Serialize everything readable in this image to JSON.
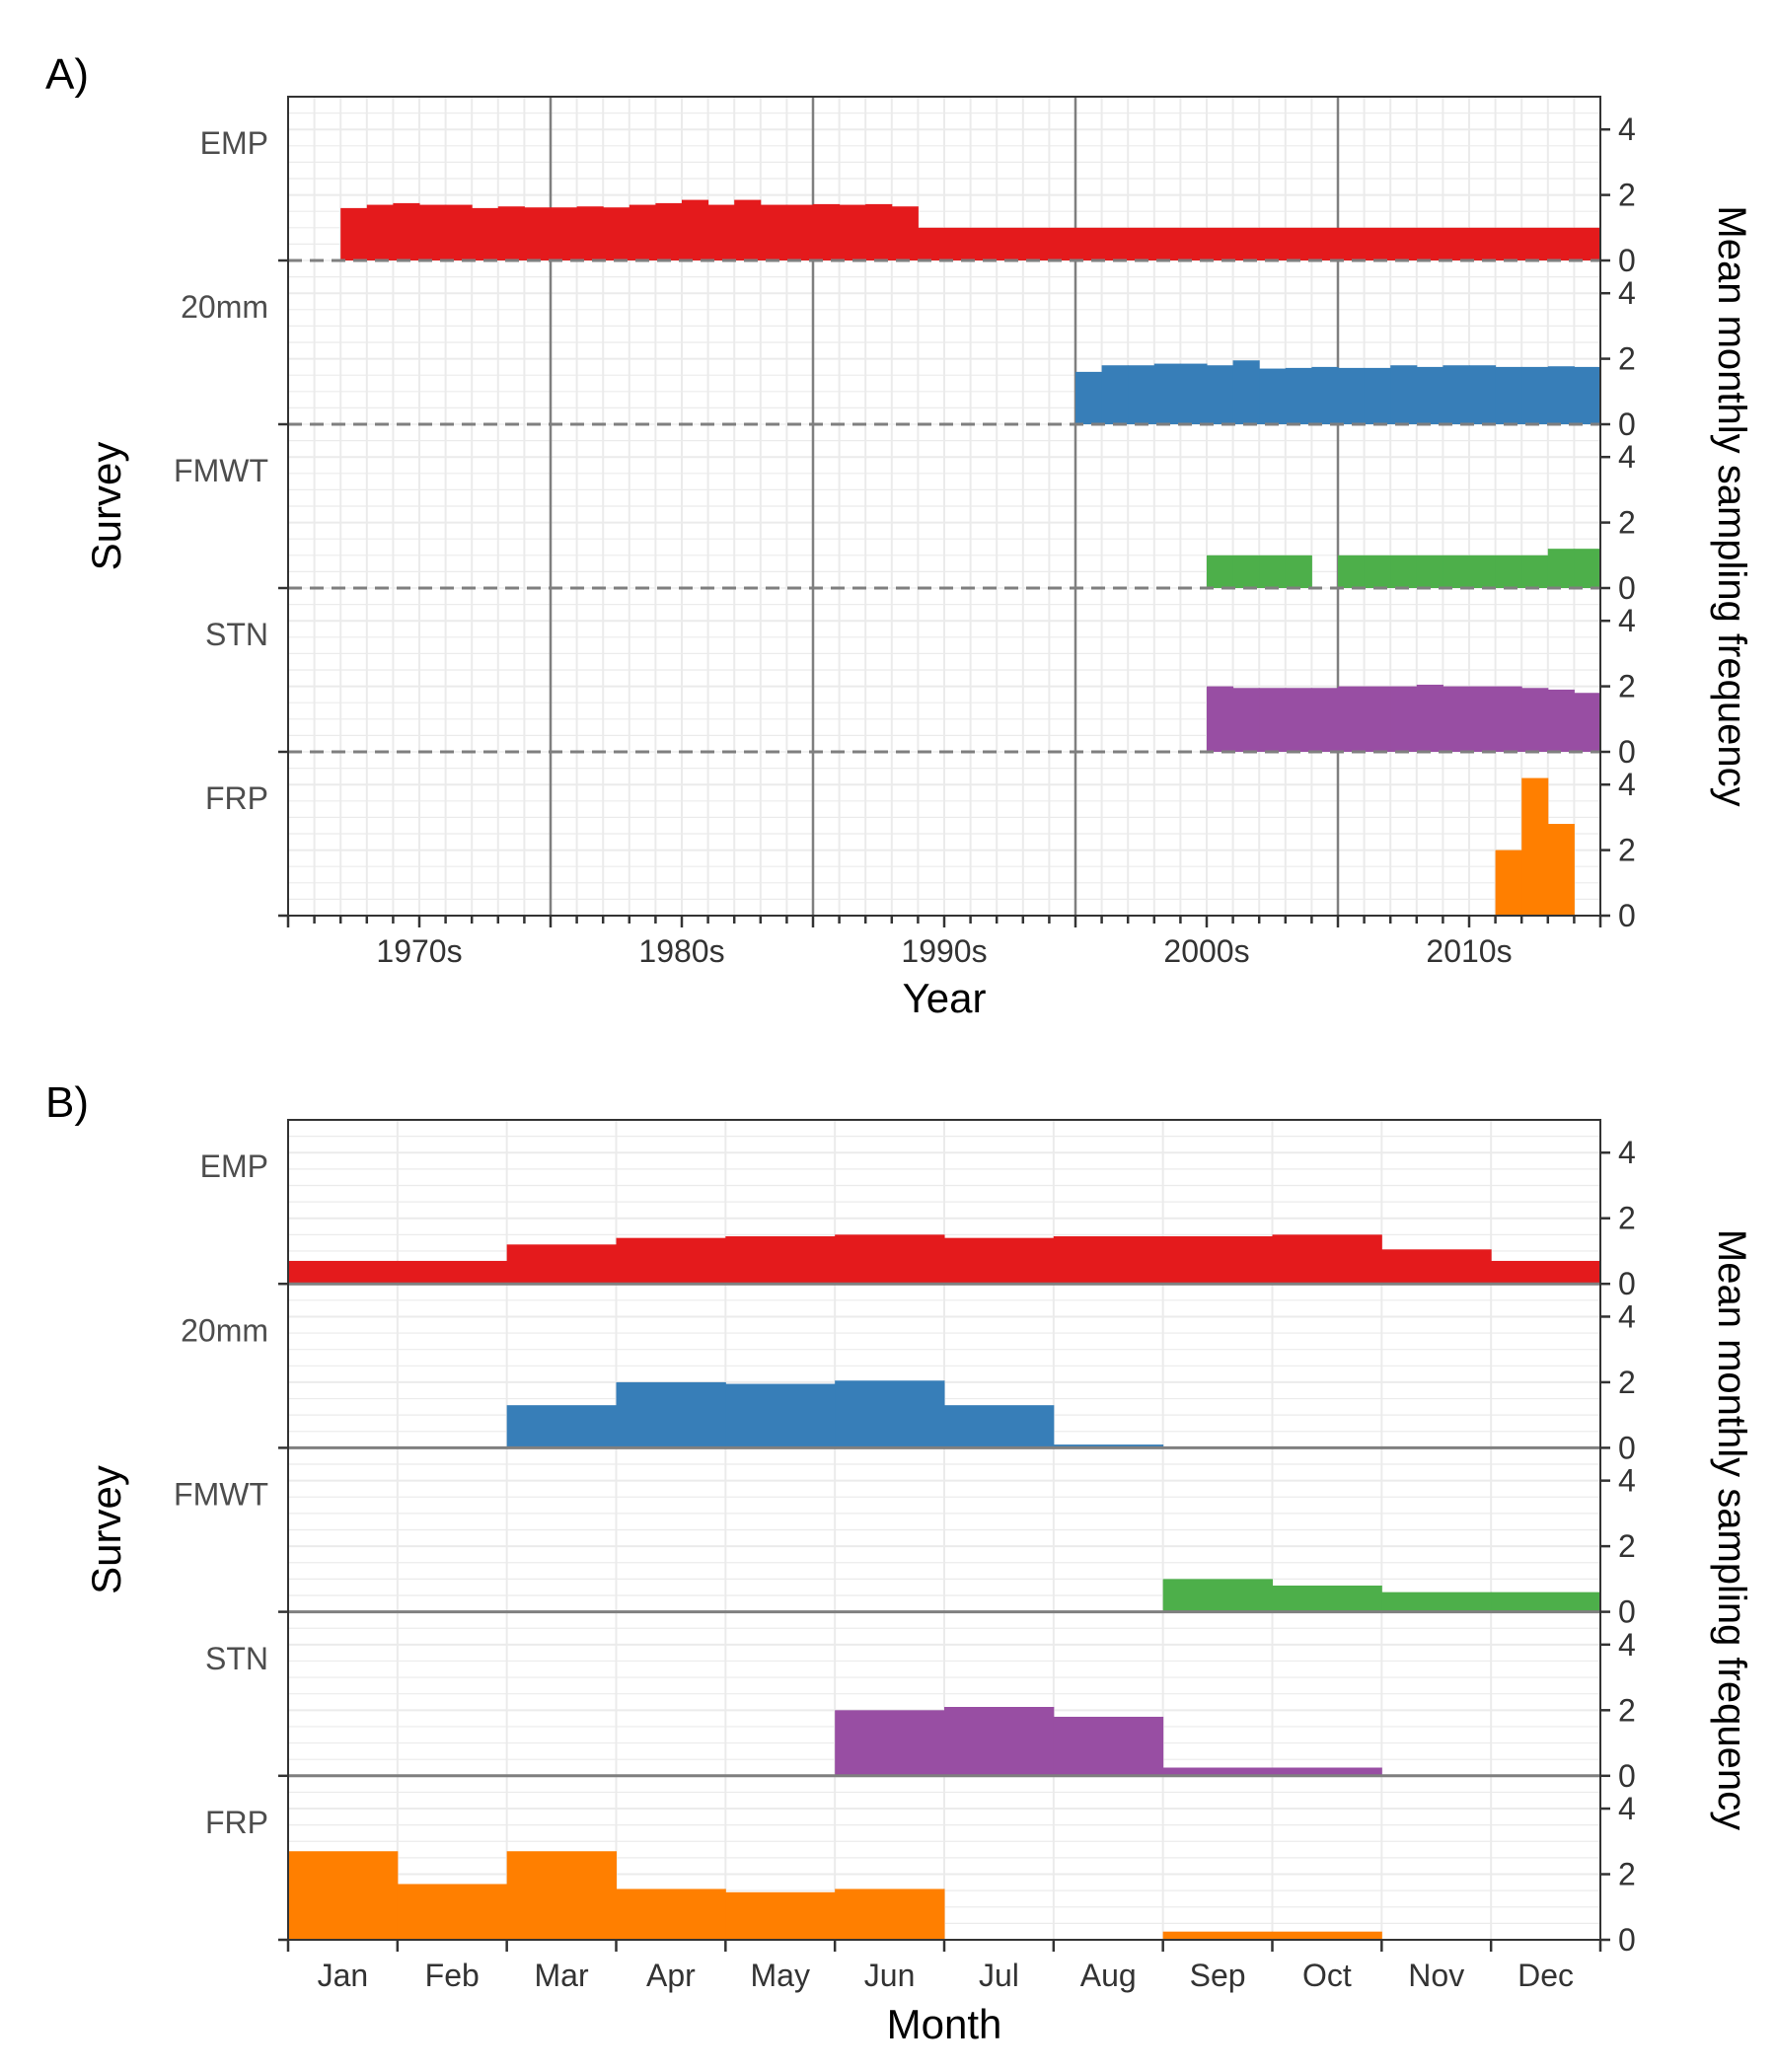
{
  "panels": [
    {
      "label": "A)",
      "x_title": "Year",
      "y_title": "Survey",
      "secondary_title": "Mean monthly sampling frequency",
      "x_ticks": [
        "1970s",
        "1980s",
        "1990s",
        "2000s",
        "2010s"
      ],
      "surveys": [
        "EMP",
        "20mm",
        "FMWT",
        "STN",
        "FRP"
      ],
      "secondary_ticks": [
        "0",
        "2",
        "4"
      ]
    },
    {
      "label": "B)",
      "x_title": "Month",
      "y_title": "Survey",
      "secondary_title": "Mean monthly sampling frequency",
      "x_ticks": [
        "Jan",
        "Feb",
        "Mar",
        "Apr",
        "May",
        "Jun",
        "Jul",
        "Aug",
        "Sep",
        "Oct",
        "Nov",
        "Dec"
      ],
      "surveys": [
        "EMP",
        "20mm",
        "FMWT",
        "STN",
        "FRP"
      ],
      "secondary_ticks": [
        "0",
        "2",
        "4"
      ]
    }
  ],
  "chart_data": [
    {
      "type": "bar",
      "title": "A)",
      "xlabel": "Year",
      "ylabel": "Survey",
      "secondary_ylabel": "Mean monthly sampling frequency",
      "xlim": [
        1965,
        2015
      ],
      "ylim": [
        0,
        5
      ],
      "grid": true,
      "x_tick_labels": [
        "1970s",
        "1980s",
        "1990s",
        "2000s",
        "2010s"
      ],
      "x_tick_positions": [
        1970,
        1980,
        1990,
        2000,
        2010
      ],
      "series": [
        {
          "name": "EMP",
          "color": "#E41A1C",
          "x": [
            1967,
            1968,
            1969,
            1970,
            1971,
            1972,
            1973,
            1974,
            1975,
            1976,
            1977,
            1978,
            1979,
            1980,
            1981,
            1982,
            1983,
            1984,
            1985,
            1986,
            1987,
            1988,
            1989,
            1990,
            1991,
            1992,
            1993,
            1994,
            1995,
            1996,
            1997,
            1998,
            1999,
            2000,
            2001,
            2002,
            2003,
            2004,
            2005,
            2006,
            2007,
            2008,
            2009,
            2010,
            2011,
            2012,
            2013,
            2014
          ],
          "values": [
            1.6,
            1.7,
            1.75,
            1.7,
            1.7,
            1.6,
            1.65,
            1.62,
            1.62,
            1.65,
            1.62,
            1.7,
            1.75,
            1.85,
            1.7,
            1.85,
            1.7,
            1.7,
            1.72,
            1.7,
            1.72,
            1.65,
            1.0,
            1.0,
            1.0,
            1.0,
            1.0,
            1.0,
            1.0,
            1.0,
            1.0,
            1.0,
            1.0,
            1.0,
            1.0,
            1.0,
            1.0,
            1.0,
            1.0,
            1.0,
            1.0,
            1.0,
            1.0,
            1.0,
            1.0,
            1.0,
            1.0,
            1.0
          ]
        },
        {
          "name": "20mm",
          "color": "#377EB8",
          "x": [
            1995,
            1996,
            1997,
            1998,
            1999,
            2000,
            2001,
            2002,
            2003,
            2004,
            2005,
            2006,
            2007,
            2008,
            2009,
            2010,
            2011,
            2012,
            2013,
            2014
          ],
          "values": [
            1.6,
            1.8,
            1.8,
            1.85,
            1.85,
            1.8,
            1.95,
            1.7,
            1.72,
            1.75,
            1.72,
            1.72,
            1.8,
            1.75,
            1.8,
            1.8,
            1.75,
            1.75,
            1.77,
            1.75
          ]
        },
        {
          "name": "FMWT",
          "color": "#4DAF4A",
          "x": [
            2000,
            2001,
            2002,
            2003,
            2005,
            2006,
            2007,
            2008,
            2009,
            2010,
            2011,
            2012,
            2013,
            2014
          ],
          "values": [
            1.0,
            1.0,
            1.0,
            1.0,
            1.0,
            1.0,
            1.0,
            1.0,
            1.0,
            1.0,
            1.0,
            1.0,
            1.2,
            1.2
          ]
        },
        {
          "name": "STN",
          "color": "#984EA3",
          "x": [
            2000,
            2001,
            2002,
            2003,
            2004,
            2005,
            2006,
            2007,
            2008,
            2009,
            2010,
            2011,
            2012,
            2013,
            2014
          ],
          "values": [
            2.0,
            1.95,
            1.95,
            1.95,
            1.95,
            2.0,
            2.0,
            2.0,
            2.05,
            2.0,
            2.0,
            2.0,
            1.95,
            1.9,
            1.8
          ]
        },
        {
          "name": "FRP",
          "color": "#FF7F00",
          "x": [
            2011,
            2012,
            2013
          ],
          "values": [
            2.0,
            4.2,
            2.8
          ]
        }
      ]
    },
    {
      "type": "bar",
      "title": "B)",
      "xlabel": "Month",
      "ylabel": "Survey",
      "secondary_ylabel": "Mean monthly sampling frequency",
      "categories": [
        "Jan",
        "Feb",
        "Mar",
        "Apr",
        "May",
        "Jun",
        "Jul",
        "Aug",
        "Sep",
        "Oct",
        "Nov",
        "Dec"
      ],
      "ylim": [
        0,
        5
      ],
      "grid": true,
      "series": [
        {
          "name": "EMP",
          "color": "#E41A1C",
          "values": [
            0.7,
            0.7,
            1.2,
            1.4,
            1.45,
            1.5,
            1.4,
            1.45,
            1.45,
            1.5,
            1.05,
            0.7
          ]
        },
        {
          "name": "20mm",
          "color": "#377EB8",
          "values": [
            0,
            0,
            1.3,
            2.0,
            1.95,
            2.05,
            1.3,
            0.1,
            0,
            0,
            0,
            0
          ]
        },
        {
          "name": "FMWT",
          "color": "#4DAF4A",
          "values": [
            0,
            0,
            0,
            0,
            0,
            0,
            0,
            0,
            1.0,
            0.8,
            0.6,
            0.6
          ]
        },
        {
          "name": "STN",
          "color": "#984EA3",
          "values": [
            0,
            0,
            0,
            0,
            0,
            2.0,
            2.1,
            1.8,
            0.25,
            0.25,
            0,
            0
          ]
        },
        {
          "name": "FRP",
          "color": "#FF7F00",
          "values": [
            2.7,
            1.7,
            2.7,
            1.55,
            1.45,
            1.55,
            0,
            0,
            0.25,
            0.25,
            0,
            0
          ]
        }
      ]
    }
  ]
}
